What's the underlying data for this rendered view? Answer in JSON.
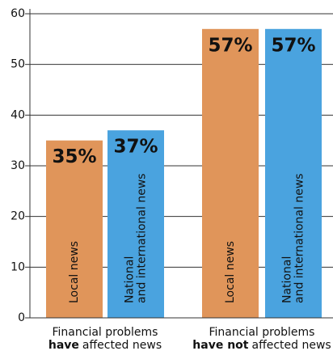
{
  "chart_data": {
    "type": "bar",
    "categories": [
      {
        "top": "Financial problems",
        "bold": "have",
        "rest": "affected news"
      },
      {
        "top": "Financial problems",
        "bold": "have not",
        "rest": "affected news"
      }
    ],
    "series": [
      {
        "name": "Local news",
        "color": "#e0955a",
        "values": [
          35,
          57
        ],
        "value_labels": [
          "35%",
          "57%"
        ]
      },
      {
        "name": "National and international news",
        "color": "#4aa3df",
        "values": [
          37,
          57
        ],
        "value_labels": [
          "37%",
          "57%"
        ]
      }
    ],
    "ylim": [
      0,
      60
    ],
    "yticks": [
      0,
      10,
      20,
      30,
      40,
      50,
      60
    ],
    "grid": true
  }
}
